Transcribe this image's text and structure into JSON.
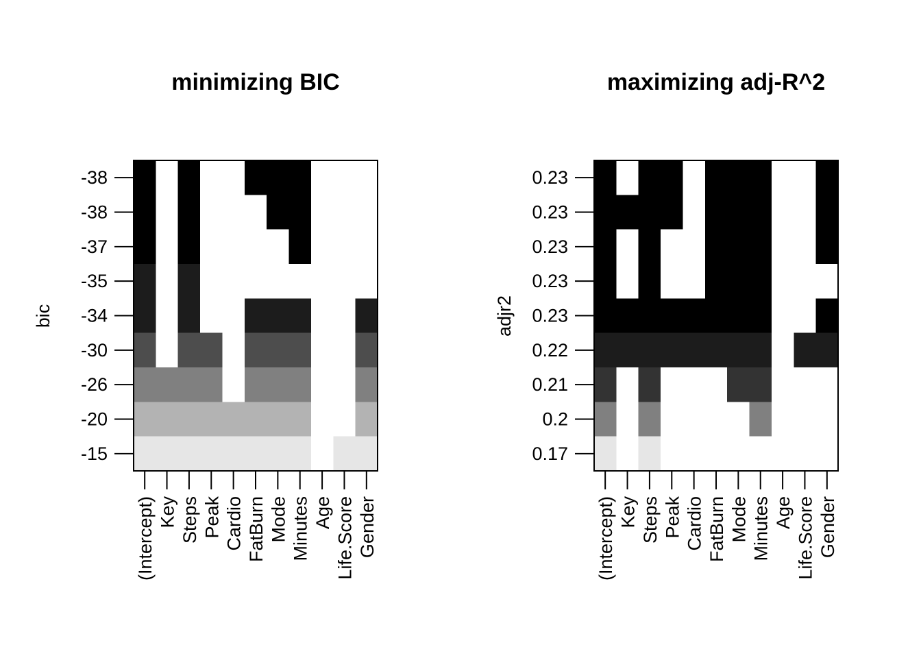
{
  "chart_data": [
    {
      "type": "heatmap",
      "title": "minimizing BIC",
      "xlabel": "",
      "ylabel": "bic",
      "columns": [
        "(Intercept)",
        "Key",
        "Steps",
        "Peak",
        "Cardio",
        "FatBurn",
        "Mode",
        "Minutes",
        "Age",
        "Life.Score",
        "Gender"
      ],
      "row_labels": [
        "-38",
        "-38",
        "-37",
        "-35",
        "-34",
        "-30",
        "-26",
        "-20",
        "-15"
      ],
      "row_shade": [
        "#000000",
        "#000000",
        "#000000",
        "#1c1c1c",
        "#1c1c1c",
        "#4d4d4d",
        "#808080",
        "#b3b3b3",
        "#e6e6e6"
      ],
      "cells": [
        [
          1,
          0,
          1,
          0,
          0,
          1,
          1,
          1,
          0,
          0,
          0
        ],
        [
          1,
          0,
          1,
          0,
          0,
          0,
          1,
          1,
          0,
          0,
          0
        ],
        [
          1,
          0,
          1,
          0,
          0,
          0,
          0,
          1,
          0,
          0,
          0
        ],
        [
          1,
          0,
          1,
          0,
          0,
          0,
          0,
          0,
          0,
          0,
          0
        ],
        [
          1,
          0,
          1,
          0,
          0,
          1,
          1,
          1,
          0,
          0,
          1
        ],
        [
          1,
          0,
          1,
          1,
          0,
          1,
          1,
          1,
          0,
          0,
          1
        ],
        [
          1,
          1,
          1,
          1,
          0,
          1,
          1,
          1,
          0,
          0,
          1
        ],
        [
          1,
          1,
          1,
          1,
          1,
          1,
          1,
          1,
          0,
          0,
          1
        ],
        [
          1,
          1,
          1,
          1,
          1,
          1,
          1,
          1,
          0,
          1,
          1
        ]
      ],
      "grid": false,
      "legend": "none"
    },
    {
      "type": "heatmap",
      "title": "maximizing adj-R^2",
      "xlabel": "",
      "ylabel": "adjr2",
      "columns": [
        "(Intercept)",
        "Key",
        "Steps",
        "Peak",
        "Cardio",
        "FatBurn",
        "Mode",
        "Minutes",
        "Age",
        "Life.Score",
        "Gender"
      ],
      "row_labels": [
        "0.23",
        "0.23",
        "0.23",
        "0.23",
        "0.23",
        "0.22",
        "0.21",
        "0.2",
        "0.17"
      ],
      "row_shade": [
        "#000000",
        "#000000",
        "#000000",
        "#000000",
        "#000000",
        "#1c1c1c",
        "#333333",
        "#808080",
        "#e6e6e6"
      ],
      "cells": [
        [
          1,
          0,
          1,
          1,
          0,
          1,
          1,
          1,
          0,
          0,
          1
        ],
        [
          1,
          1,
          1,
          1,
          0,
          1,
          1,
          1,
          0,
          0,
          1
        ],
        [
          1,
          0,
          1,
          0,
          0,
          1,
          1,
          1,
          0,
          0,
          1
        ],
        [
          1,
          0,
          1,
          0,
          0,
          1,
          1,
          1,
          0,
          0,
          0
        ],
        [
          1,
          1,
          1,
          1,
          1,
          1,
          1,
          1,
          0,
          0,
          1
        ],
        [
          1,
          1,
          1,
          1,
          1,
          1,
          1,
          1,
          0,
          1,
          1
        ],
        [
          1,
          0,
          1,
          0,
          0,
          0,
          1,
          1,
          0,
          0,
          0
        ],
        [
          1,
          0,
          1,
          0,
          0,
          0,
          0,
          1,
          0,
          0,
          0
        ],
        [
          1,
          0,
          1,
          0,
          0,
          0,
          0,
          0,
          0,
          0,
          0
        ]
      ],
      "grid": false,
      "legend": "none"
    }
  ]
}
